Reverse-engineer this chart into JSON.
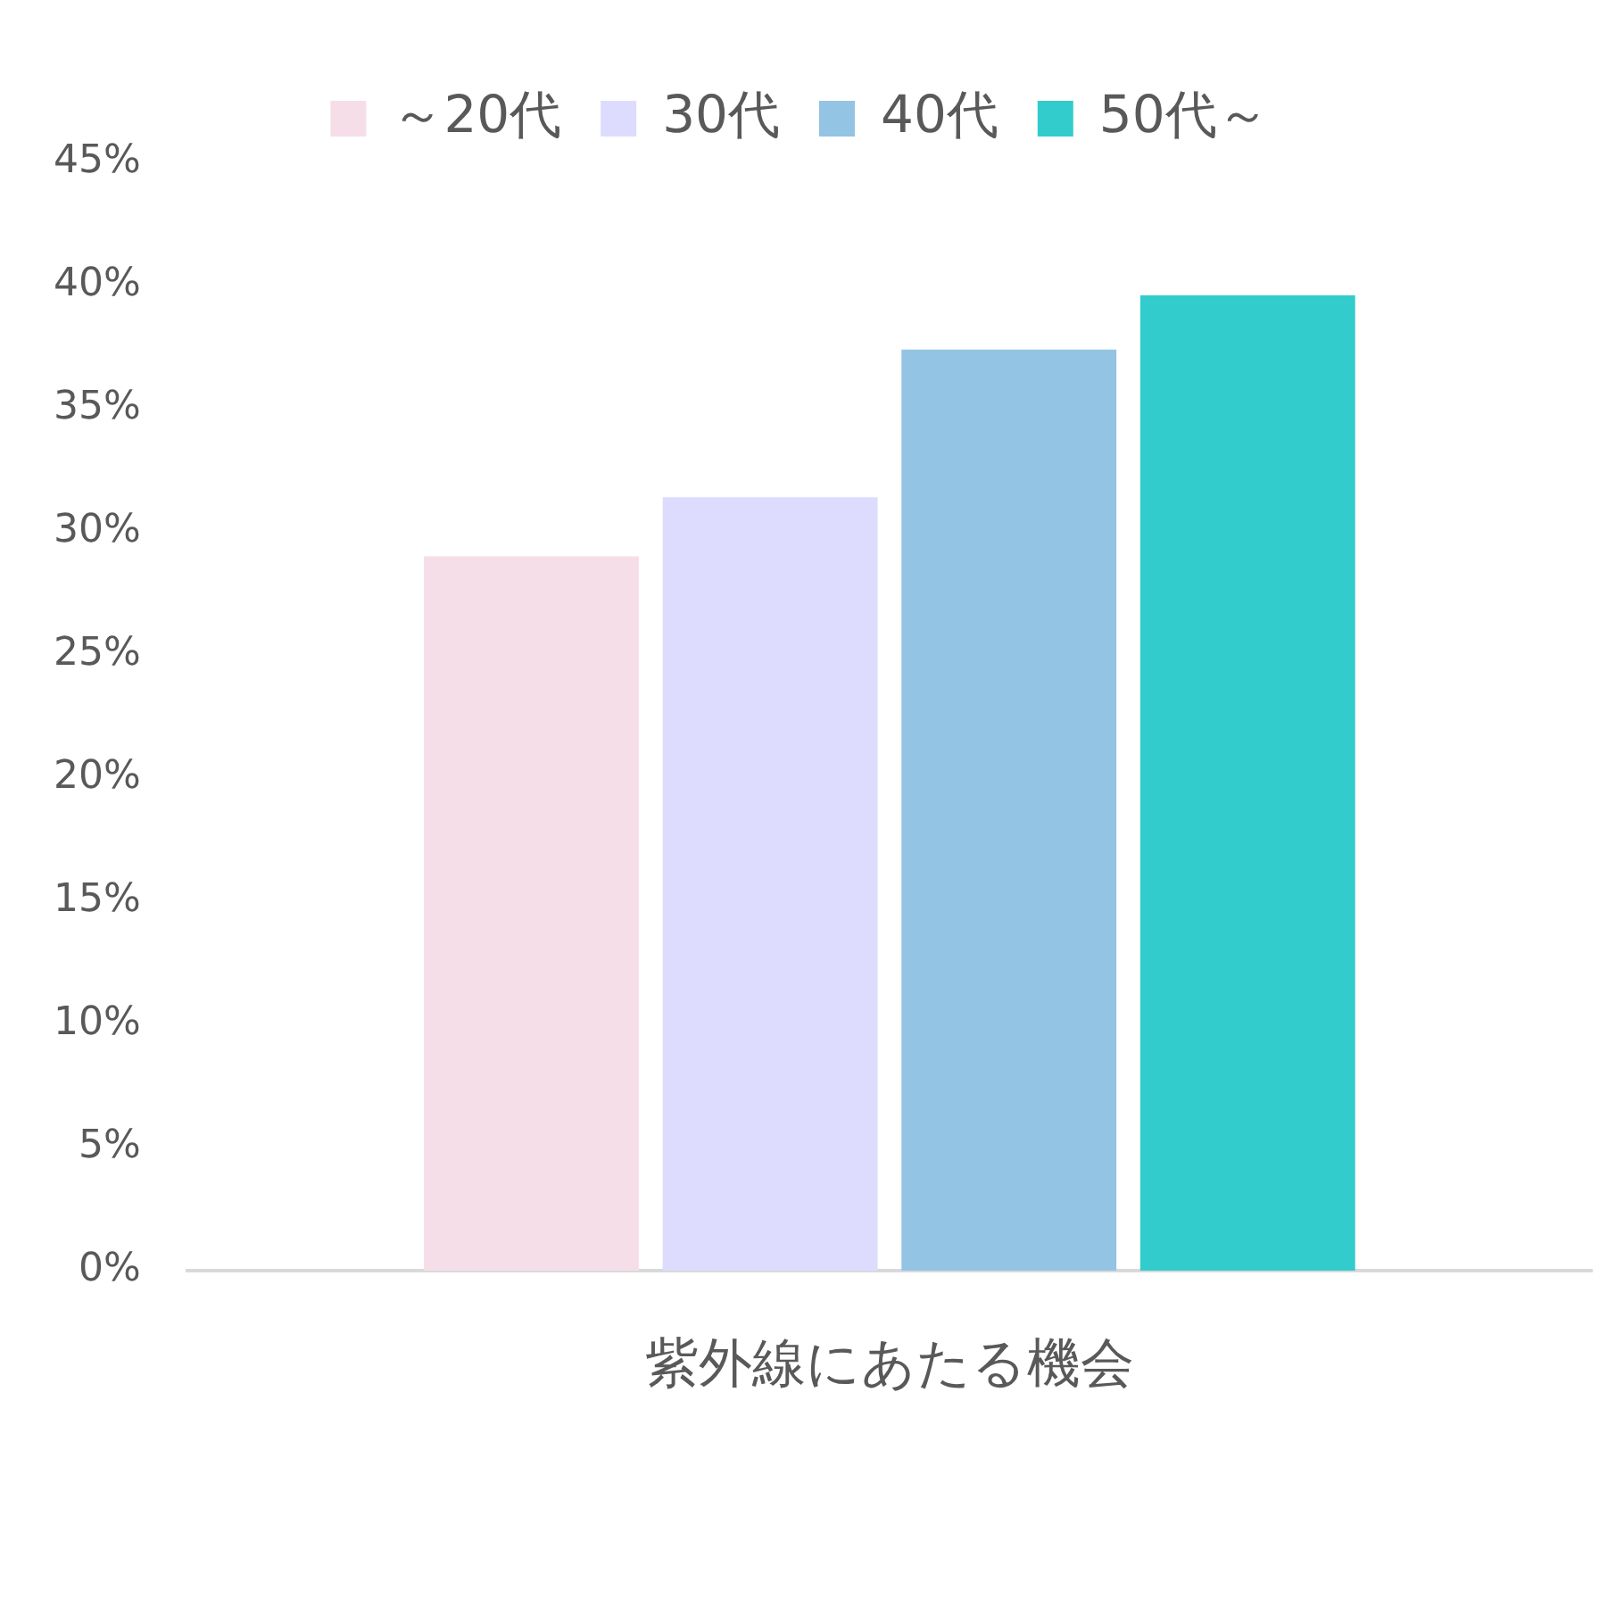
{
  "chart_data": {
    "type": "bar",
    "categories": [
      "紫外線にあたる機会"
    ],
    "series": [
      {
        "name": "～20代",
        "color": "#f6dee8",
        "values": [
          29
        ]
      },
      {
        "name": "30代",
        "color": "#dddcfe",
        "values": [
          31.4
        ]
      },
      {
        "name": "40代",
        "color": "#93c4e3",
        "values": [
          37.4
        ]
      },
      {
        "name": "50代～",
        "color": "#33cccc",
        "values": [
          39.6
        ]
      }
    ],
    "ylim": [
      0,
      45
    ],
    "yticks": [
      {
        "value": 0,
        "label": "0%"
      },
      {
        "value": 5,
        "label": "5%"
      },
      {
        "value": 10,
        "label": "10%"
      },
      {
        "value": 15,
        "label": "15%"
      },
      {
        "value": 20,
        "label": "20%"
      },
      {
        "value": 25,
        "label": "25%"
      },
      {
        "value": 30,
        "label": "30%"
      },
      {
        "value": 35,
        "label": "35%"
      },
      {
        "value": 40,
        "label": "40%"
      },
      {
        "value": 45,
        "label": "45%"
      }
    ],
    "grid": false,
    "legend": "top"
  }
}
